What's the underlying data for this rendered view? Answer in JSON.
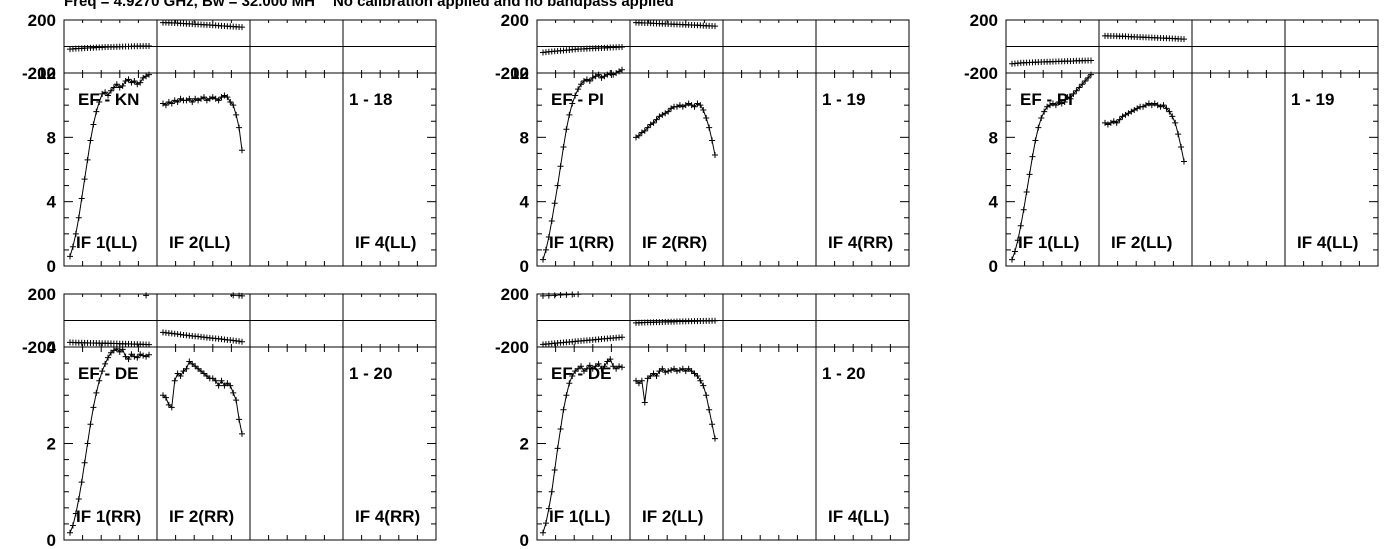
{
  "header": {
    "freq_text": "Freq = 4.9270 GHz, Bw = 32.000 MH",
    "calib_text": "No calibration applied and no bandpass applied"
  },
  "chart_data": [
    {
      "type": "line",
      "baseline_label": "EF - KN",
      "time_label": "1 - 18",
      "if_labels": [
        "IF 1(LL)",
        "IF 2(LL)",
        "",
        "IF 4(LL)"
      ],
      "amp_ylim": [
        0,
        12
      ],
      "amp_ticks": [
        0,
        4,
        8,
        12
      ],
      "phase_ylim": [
        -200,
        200
      ],
      "phase_ticks": [
        -200,
        200
      ],
      "series": [
        {
          "if": 1,
          "amp": [
            0.6,
            1.2,
            2,
            3,
            4.2,
            5.4,
            6.6,
            7.8,
            8.8,
            9.6,
            10.2,
            10.7,
            10.8,
            10.6,
            10.9,
            11.1,
            11.3,
            11.1,
            11.2,
            11.5,
            11.6,
            11.4,
            11.5,
            11.3,
            11.4,
            11.7,
            11.8,
            11.9
          ],
          "phase": [
            -20,
            -18,
            -16,
            -15,
            -14,
            -12,
            -11,
            -10,
            -9,
            -8,
            -7,
            -6,
            -5,
            -4,
            -4,
            -3,
            -2,
            -1,
            -1,
            0,
            0,
            1,
            2,
            2,
            3,
            3,
            4,
            4
          ]
        },
        {
          "if": 2,
          "amp": [
            10.1,
            10.0,
            10.2,
            10.1,
            10.3,
            10.2,
            10.4,
            10.3,
            10.3,
            10.4,
            10.2,
            10.4,
            10.3,
            10.4,
            10.5,
            10.3,
            10.4,
            10.5,
            10.4,
            10.3,
            10.5,
            10.6,
            10.5,
            10.2,
            10.0,
            9.4,
            8.6,
            7.2
          ],
          "phase": [
            180,
            180,
            179,
            178,
            177,
            176,
            175,
            174,
            172,
            171,
            170,
            168,
            167,
            166,
            164,
            163,
            162,
            160,
            159,
            158,
            156,
            155,
            153,
            152,
            150,
            149,
            147,
            146
          ]
        }
      ]
    },
    {
      "type": "line",
      "baseline_label": "EF - PI",
      "time_label": "1 - 19",
      "if_labels": [
        "IF 1(RR)",
        "IF 2(RR)",
        "",
        "IF 4(RR)"
      ],
      "amp_ylim": [
        0,
        12
      ],
      "amp_ticks": [
        0,
        4,
        8,
        12
      ],
      "phase_ylim": [
        -200,
        200
      ],
      "phase_ticks": [
        -200,
        200
      ],
      "series": [
        {
          "if": 1,
          "amp": [
            0.4,
            1,
            1.8,
            2.8,
            3.9,
            5,
            6.2,
            7.4,
            8.5,
            9.4,
            10.1,
            10.6,
            11,
            11.3,
            11.5,
            11.6,
            11.5,
            11.7,
            11.8,
            11.9,
            11.7,
            11.8,
            11.9,
            12,
            11.9,
            12,
            12.1,
            12.2
          ],
          "phase": [
            -45,
            -42,
            -40,
            -38,
            -36,
            -34,
            -32,
            -30,
            -28,
            -26,
            -24,
            -22,
            -20,
            -19,
            -18,
            -16,
            -15,
            -14,
            -13,
            -12,
            -11,
            -10,
            -9,
            -8,
            -7,
            -6,
            -5,
            -4
          ]
        },
        {
          "if": 2,
          "amp": [
            8.0,
            8.1,
            8.3,
            8.4,
            8.6,
            8.8,
            8.9,
            9.1,
            9.3,
            9.4,
            9.5,
            9.6,
            9.8,
            9.9,
            9.9,
            10.0,
            9.9,
            10.0,
            10.1,
            10.0,
            9.9,
            10.1,
            10.0,
            9.7,
            9.2,
            8.6,
            7.8,
            6.9
          ],
          "phase": [
            180,
            179,
            178,
            177,
            177,
            176,
            175,
            174,
            173,
            172,
            171,
            170,
            169,
            168,
            167,
            166,
            165,
            164,
            163,
            162,
            161,
            160,
            159,
            158,
            157,
            156,
            155,
            154
          ]
        }
      ]
    },
    {
      "type": "line",
      "baseline_label": "EF - PI",
      "time_label": "1 - 19",
      "if_labels": [
        "IF 1(LL)",
        "IF 2(LL)",
        "",
        "IF 4(LL)"
      ],
      "amp_ylim": [
        0,
        12
      ],
      "amp_ticks": [
        0,
        4,
        8
      ],
      "phase_ylim": [
        -200,
        200
      ],
      "phase_ticks": [
        -200,
        200
      ],
      "series": [
        {
          "if": 1,
          "amp": [
            0.4,
            0.9,
            1.6,
            2.5,
            3.5,
            4.6,
            5.7,
            6.8,
            7.8,
            8.6,
            9.2,
            9.6,
            9.9,
            10.0,
            10.1,
            10.0,
            10.2,
            10.1,
            10.2,
            10.5,
            10.4,
            10.7,
            10.9,
            11.1,
            11.3,
            11.5,
            11.7,
            11.9
          ],
          "phase": [
            -130,
            -128,
            -126,
            -124,
            -123,
            -122,
            -121,
            -120,
            -119,
            -118,
            -117,
            -116,
            -115,
            -115,
            -114,
            -113,
            -112,
            -112,
            -111,
            -110,
            -110,
            -109,
            -108,
            -108,
            -107,
            -107,
            -106,
            -106
          ]
        },
        {
          "if": 2,
          "amp": [
            8.9,
            8.8,
            8.9,
            9.0,
            8.9,
            9.1,
            9.3,
            9.4,
            9.5,
            9.6,
            9.7,
            9.8,
            9.9,
            9.9,
            10.0,
            10.1,
            10.0,
            10.1,
            10.0,
            9.9,
            10.0,
            9.8,
            9.6,
            9.3,
            8.9,
            8.2,
            7.4,
            6.5
          ],
          "phase": [
            80,
            80,
            79,
            79,
            78,
            77,
            77,
            76,
            75,
            74,
            73,
            72,
            71,
            70,
            69,
            68,
            67,
            66,
            65,
            64,
            63,
            62,
            61,
            60,
            59,
            58,
            57,
            56
          ]
        }
      ]
    },
    {
      "type": "line",
      "baseline_label": "EF - DE",
      "time_label": "1 - 20",
      "if_labels": [
        "IF 1(RR)",
        "IF 2(RR)",
        "",
        "IF 4(RR)"
      ],
      "amp_ylim": [
        0,
        4
      ],
      "amp_ticks": [
        0,
        2,
        4
      ],
      "phase_ylim": [
        -200,
        200
      ],
      "phase_ticks": [
        -200,
        200
      ],
      "series": [
        {
          "if": 1,
          "amp": [
            0.15,
            0.3,
            0.55,
            0.85,
            1.2,
            1.6,
            2,
            2.4,
            2.75,
            3.05,
            3.3,
            3.5,
            3.65,
            3.78,
            3.88,
            3.93,
            3.96,
            3.9,
            3.95,
            3.8,
            3.75,
            3.85,
            3.8,
            3.78,
            3.85,
            3.82,
            3.8,
            3.84
          ],
          "phase": [
            -165,
            -166,
            -167,
            -168,
            -168,
            -169,
            -169,
            -170,
            -170,
            -171,
            -171,
            -172,
            -172,
            -173,
            -173,
            -174,
            -174,
            -175,
            -175,
            -176,
            -176,
            -177,
            -178,
            -178,
            -179,
            -180,
            -181,
            -182
          ]
        },
        {
          "if": 2,
          "amp": [
            3.0,
            2.95,
            2.8,
            2.75,
            3.3,
            3.45,
            3.4,
            3.5,
            3.55,
            3.7,
            3.65,
            3.6,
            3.55,
            3.5,
            3.45,
            3.4,
            3.35,
            3.35,
            3.3,
            3.2,
            3.3,
            3.2,
            3.25,
            3.2,
            3.05,
            2.9,
            2.5,
            2.2
          ],
          "phase": [
            -90,
            -92,
            -95,
            -97,
            -100,
            -103,
            -106,
            -109,
            -111,
            -114,
            -117,
            -119,
            -121,
            -124,
            -126,
            -129,
            -131,
            -134,
            -136,
            -138,
            -141,
            -143,
            -146,
            -148,
            -151,
            -154,
            -157,
            -160
          ]
        }
      ],
      "phase_outliers": [
        {
          "if": 1,
          "x": 26,
          "phase": 190
        },
        {
          "if": 2,
          "x": 24,
          "phase": 190
        },
        {
          "if": 2,
          "x": 26,
          "phase": 188
        },
        {
          "if": 2,
          "x": 27,
          "phase": 186
        }
      ]
    },
    {
      "type": "line",
      "baseline_label": "EF - DE",
      "time_label": "1 - 20",
      "if_labels": [
        "IF 1(LL)",
        "IF 2(LL)",
        "",
        "IF 4(LL)"
      ],
      "amp_ylim": [
        0,
        4
      ],
      "amp_ticks": [
        0,
        2
      ],
      "phase_ylim": [
        -200,
        200
      ],
      "phase_ticks": [
        -200,
        200
      ],
      "series": [
        {
          "if": 1,
          "amp": [
            0.15,
            0.35,
            0.65,
            1,
            1.45,
            1.9,
            2.3,
            2.7,
            3,
            3.25,
            3.4,
            3.5,
            3.55,
            3.6,
            3.5,
            3.55,
            3.62,
            3.55,
            3.6,
            3.65,
            3.55,
            3.6,
            3.7,
            3.75,
            3.6,
            3.55,
            3.6,
            3.58
          ],
          "phase": [
            -180,
            -178,
            -176,
            -174,
            -172,
            -170,
            -168,
            -166,
            -164,
            -162,
            -160,
            -158,
            -156,
            -154,
            -152,
            -150,
            -148,
            -146,
            -144,
            -142,
            -140,
            -138,
            -136,
            -134,
            -132,
            -130,
            -128,
            -126
          ]
        },
        {
          "if": 2,
          "amp": [
            3.3,
            3.25,
            3.3,
            2.85,
            3.35,
            3.4,
            3.45,
            3.4,
            3.5,
            3.55,
            3.48,
            3.5,
            3.52,
            3.55,
            3.5,
            3.52,
            3.55,
            3.5,
            3.55,
            3.5,
            3.45,
            3.4,
            3.3,
            3.2,
            3.0,
            2.7,
            2.4,
            2.1
          ],
          "phase": [
            -18,
            -17,
            -16,
            -15,
            -14,
            -14,
            -13,
            -12,
            -12,
            -11,
            -10,
            -10,
            -9,
            -9,
            -8,
            -8,
            -7,
            -7,
            -6,
            -6,
            -5,
            -5,
            -4,
            -4,
            -3,
            -3,
            -2,
            -2
          ]
        }
      ],
      "phase_outliers": [
        {
          "if": 1,
          "x": 0,
          "phase": 186
        },
        {
          "if": 1,
          "x": 2,
          "phase": 188
        },
        {
          "if": 1,
          "x": 4,
          "phase": 190
        },
        {
          "if": 1,
          "x": 6,
          "phase": 192
        },
        {
          "if": 1,
          "x": 8,
          "phase": 194
        },
        {
          "if": 1,
          "x": 10,
          "phase": 196
        },
        {
          "if": 1,
          "x": 12,
          "phase": 198
        }
      ]
    }
  ]
}
